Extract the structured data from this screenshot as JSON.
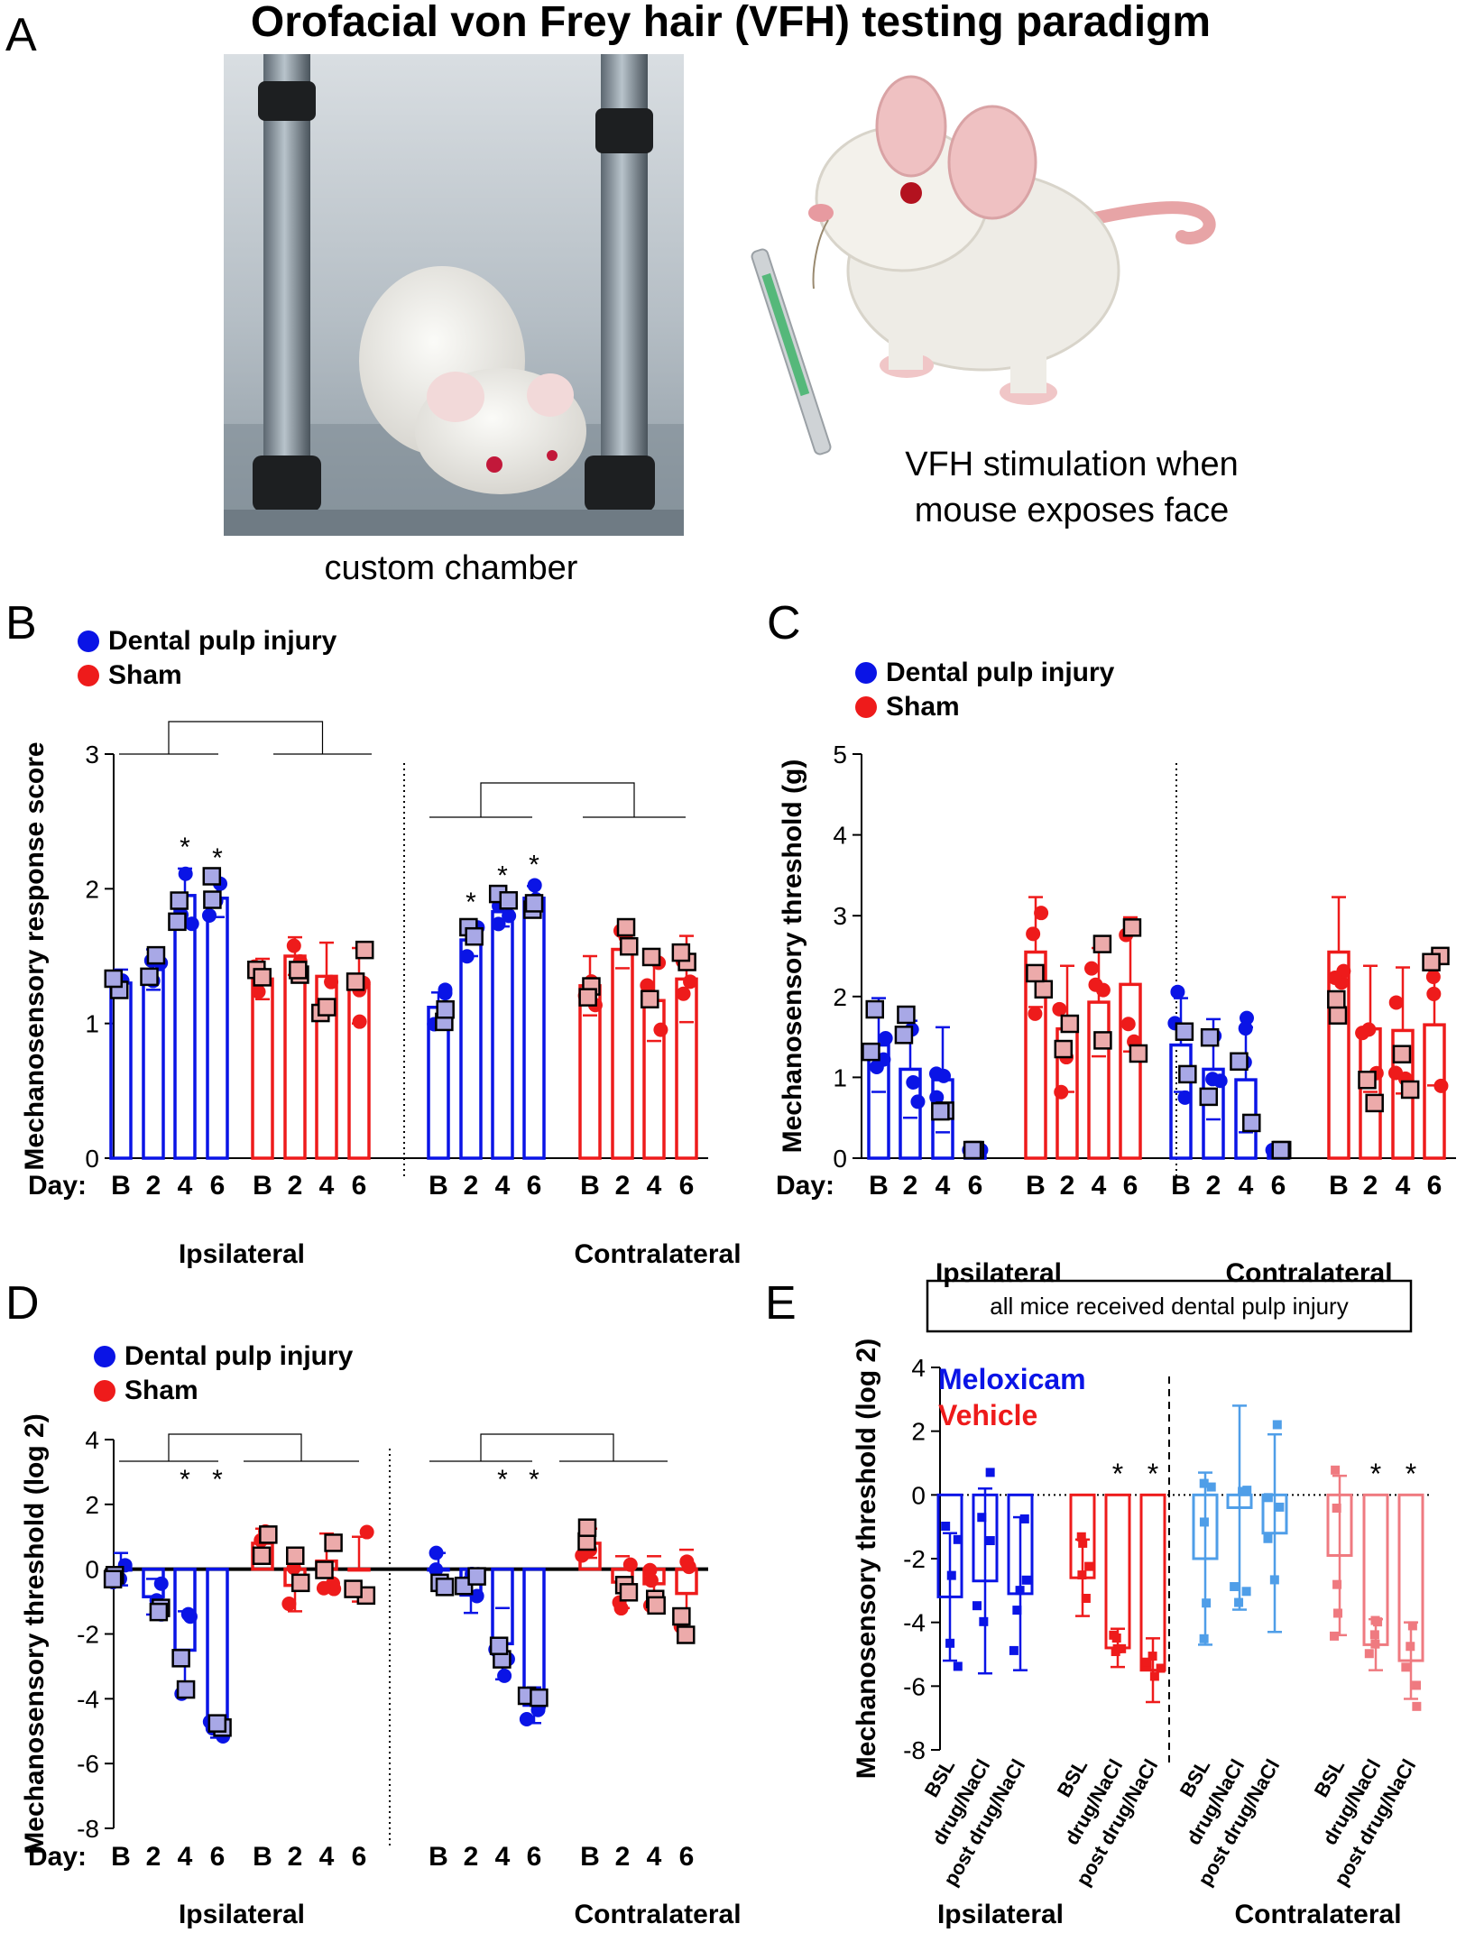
{
  "title": "Orofacial von Frey hair (VFH) testing paradigm",
  "panel_labels": [
    "A",
    "B",
    "C",
    "D",
    "E"
  ],
  "panel_a": {
    "photo_caption": "custom chamber",
    "illustration_caption_line1": "VFH stimulation when",
    "illustration_caption_line2": "mouse exposes face"
  },
  "colors": {
    "injury": "#0a14e6",
    "sham": "#ee1b1b",
    "injury_open": "#a8a8e6",
    "sham_open": "#ecaaaa",
    "meloxicam_light": "#4f9ee8",
    "vehicle_light": "#ef7a80"
  },
  "legend": {
    "injury": "Dental pulp injury",
    "sham": "Sham",
    "meloxicam": "Meloxicam",
    "vehicle": "Vehicle"
  },
  "day_prefix": "Day:",
  "side_labels": [
    "Ipsilateral",
    "Contralateral"
  ],
  "panel_e_box_label": "all mice received dental pulp injury",
  "chart_data": [
    {
      "id": "B",
      "type": "bar",
      "ylabel": "Mechanosensory response score",
      "ylim": [
        0,
        3
      ],
      "yticks": [
        0,
        1,
        2,
        3
      ],
      "categories": [
        "B",
        "2",
        "4",
        "6"
      ],
      "groups": [
        "Ipsilateral",
        "Contralateral"
      ],
      "series": [
        {
          "name": "Dental pulp injury",
          "side": "Ipsilateral",
          "means": [
            1.3,
            1.4,
            1.95,
            1.93
          ],
          "sem": [
            0.1,
            0.15,
            0.2,
            0.14
          ],
          "significant": [
            false,
            false,
            true,
            true
          ]
        },
        {
          "name": "Sham",
          "side": "Ipsilateral",
          "means": [
            1.33,
            1.5,
            1.35,
            1.28
          ],
          "sem": [
            0.15,
            0.14,
            0.25,
            0.28
          ],
          "significant": [
            false,
            false,
            false,
            false
          ]
        },
        {
          "name": "Dental pulp injury",
          "side": "Contralateral",
          "means": [
            1.12,
            1.62,
            1.83,
            1.93
          ],
          "sem": [
            0.11,
            0.12,
            0.11,
            0.09
          ],
          "significant": [
            false,
            true,
            true,
            true
          ]
        },
        {
          "name": "Sham",
          "side": "Contralateral",
          "means": [
            1.28,
            1.55,
            1.17,
            1.33
          ],
          "sem": [
            0.22,
            0.14,
            0.3,
            0.32
          ],
          "significant": [
            false,
            false,
            false,
            false
          ]
        }
      ],
      "significance_marker": "*"
    },
    {
      "id": "C",
      "type": "bar",
      "ylabel": "Mechanosensory threshold (g)",
      "ylim": [
        0,
        5
      ],
      "yticks": [
        0,
        1,
        2,
        3,
        4,
        5
      ],
      "categories": [
        "B",
        "2",
        "4",
        "6"
      ],
      "groups": [
        "Ipsilateral",
        "Contralateral"
      ],
      "series": [
        {
          "name": "Dental pulp injury",
          "side": "Ipsilateral",
          "means": [
            1.4,
            1.1,
            0.97,
            0.02
          ],
          "sem": [
            0.58,
            0.6,
            0.65,
            0.02
          ]
        },
        {
          "name": "Sham",
          "side": "Ipsilateral",
          "means": [
            2.55,
            1.6,
            1.93,
            2.15
          ],
          "sem": [
            0.68,
            0.78,
            0.67,
            0.83
          ]
        },
        {
          "name": "Dental pulp injury",
          "side": "Contralateral",
          "means": [
            1.4,
            1.1,
            0.97,
            0.05
          ],
          "sem": [
            0.58,
            0.62,
            0.65,
            0.05
          ]
        },
        {
          "name": "Sham",
          "side": "Contralateral",
          "means": [
            2.55,
            1.6,
            1.58,
            1.65
          ],
          "sem": [
            0.68,
            0.78,
            0.78,
            0.75
          ]
        }
      ]
    },
    {
      "id": "D",
      "type": "bar",
      "ylabel": "Mechanosensory threshold (log 2)",
      "ylim": [
        -8,
        4
      ],
      "yticks": [
        -8,
        -6,
        -4,
        -2,
        0,
        2,
        4
      ],
      "categories": [
        "B",
        "2",
        "4",
        "6"
      ],
      "groups": [
        "Ipsilateral",
        "Contralateral"
      ],
      "series": [
        {
          "name": "Dental pulp injury",
          "side": "Ipsilateral",
          "means": [
            0.0,
            -0.85,
            -2.5,
            -4.95
          ],
          "sem": [
            0.5,
            0.55,
            1.2,
            0.25
          ],
          "significant": [
            false,
            false,
            true,
            true
          ]
        },
        {
          "name": "Sham",
          "side": "Ipsilateral",
          "means": [
            0.8,
            -0.5,
            0.25,
            0.0
          ],
          "sem": [
            0.45,
            0.8,
            0.85,
            1.0
          ]
        },
        {
          "name": "Dental pulp injury",
          "side": "Contralateral",
          "means": [
            0.0,
            -0.8,
            -2.3,
            -4.2
          ],
          "sem": [
            0.5,
            0.55,
            1.1,
            0.55
          ],
          "significant": [
            false,
            false,
            true,
            true
          ]
        },
        {
          "name": "Sham",
          "side": "Contralateral",
          "means": [
            0.8,
            -0.4,
            -0.45,
            -0.75
          ],
          "sem": [
            0.45,
            0.8,
            0.85,
            1.35
          ]
        }
      ],
      "significance_marker": "*"
    },
    {
      "id": "E",
      "type": "bar",
      "ylabel": "Mechanosensory threshold (log 2)",
      "ylim": [
        -8,
        4
      ],
      "yticks": [
        -8,
        -6,
        -4,
        -2,
        0,
        2,
        4
      ],
      "categories": [
        "BSL",
        "drug/NaCl",
        "post drug/NaCl"
      ],
      "groups": [
        "Ipsilateral",
        "Contralateral"
      ],
      "series": [
        {
          "name": "Meloxicam",
          "side": "Ipsilateral",
          "means": [
            -3.2,
            -2.7,
            -3.1
          ],
          "sd": [
            2.0,
            2.9,
            2.4
          ],
          "significant": [
            false,
            false,
            false
          ]
        },
        {
          "name": "Vehicle",
          "side": "Ipsilateral",
          "means": [
            -2.6,
            -4.8,
            -5.5
          ],
          "sd": [
            1.2,
            0.6,
            1.0
          ],
          "significant": [
            false,
            true,
            true
          ]
        },
        {
          "name": "Meloxicam",
          "side": "Contralateral",
          "means": [
            -2.0,
            -0.4,
            -1.2
          ],
          "sd": [
            2.7,
            3.2,
            3.1
          ],
          "significant": [
            false,
            false,
            false
          ]
        },
        {
          "name": "Vehicle",
          "side": "Contralateral",
          "means": [
            -1.9,
            -4.7,
            -5.2
          ],
          "sd": [
            2.5,
            0.8,
            1.2
          ],
          "significant": [
            false,
            true,
            true
          ]
        }
      ],
      "significance_marker": "*"
    }
  ]
}
